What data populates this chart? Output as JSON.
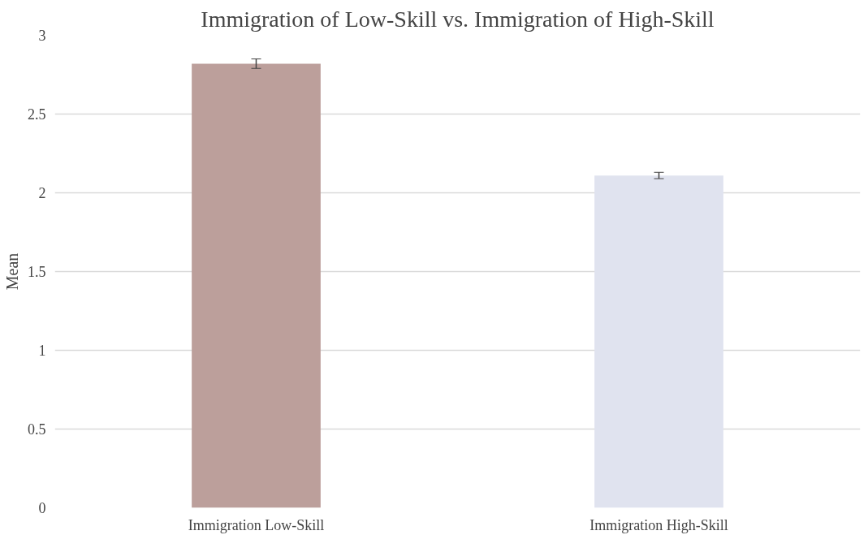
{
  "chart_data": {
    "type": "bar",
    "title": "Immigration of Low-Skill vs. Immigration of High-Skill",
    "ylabel": "Mean",
    "categories": [
      "Immigration Low-Skill",
      "Immigration High-Skill"
    ],
    "values": [
      2.82,
      2.11
    ],
    "colors": [
      "#bc9f9b",
      "#e0e3ef"
    ],
    "errors": [
      0.03,
      0.02
    ],
    "ylim": [
      0,
      3
    ],
    "yticks": [
      0,
      0.5,
      1,
      1.5,
      2,
      2.5,
      3
    ],
    "grid": "y"
  }
}
